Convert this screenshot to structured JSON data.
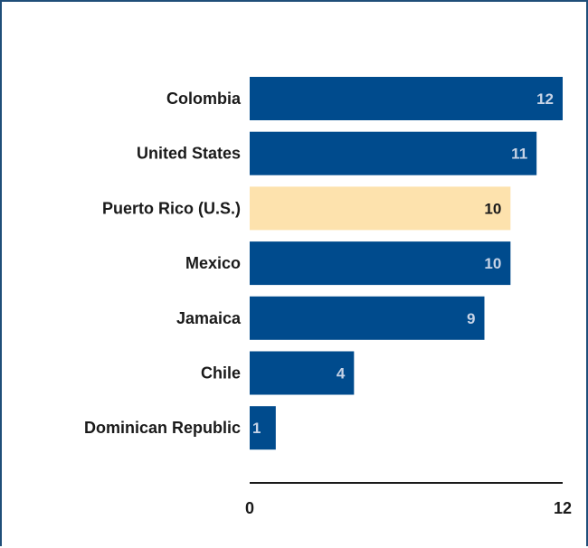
{
  "chart_data": {
    "type": "bar",
    "orientation": "horizontal",
    "categories": [
      "Colombia",
      "United States",
      "Puerto Rico (U.S.)",
      "Mexico",
      "Jamaica",
      "Chile",
      "Dominican Republic"
    ],
    "values": [
      12,
      11,
      10,
      10,
      9,
      4,
      1
    ],
    "highlight": "Puerto Rico (U.S.)",
    "xlim": [
      0,
      12
    ],
    "x_ticks": [
      "0",
      "12"
    ],
    "grid": false,
    "colors": {
      "bar": "#004b8d",
      "highlight_bar": "#fde2ad",
      "bar_label": "#c7d3e6",
      "highlight_label": "#1a1a1a",
      "frame": "#1f4e79"
    }
  }
}
